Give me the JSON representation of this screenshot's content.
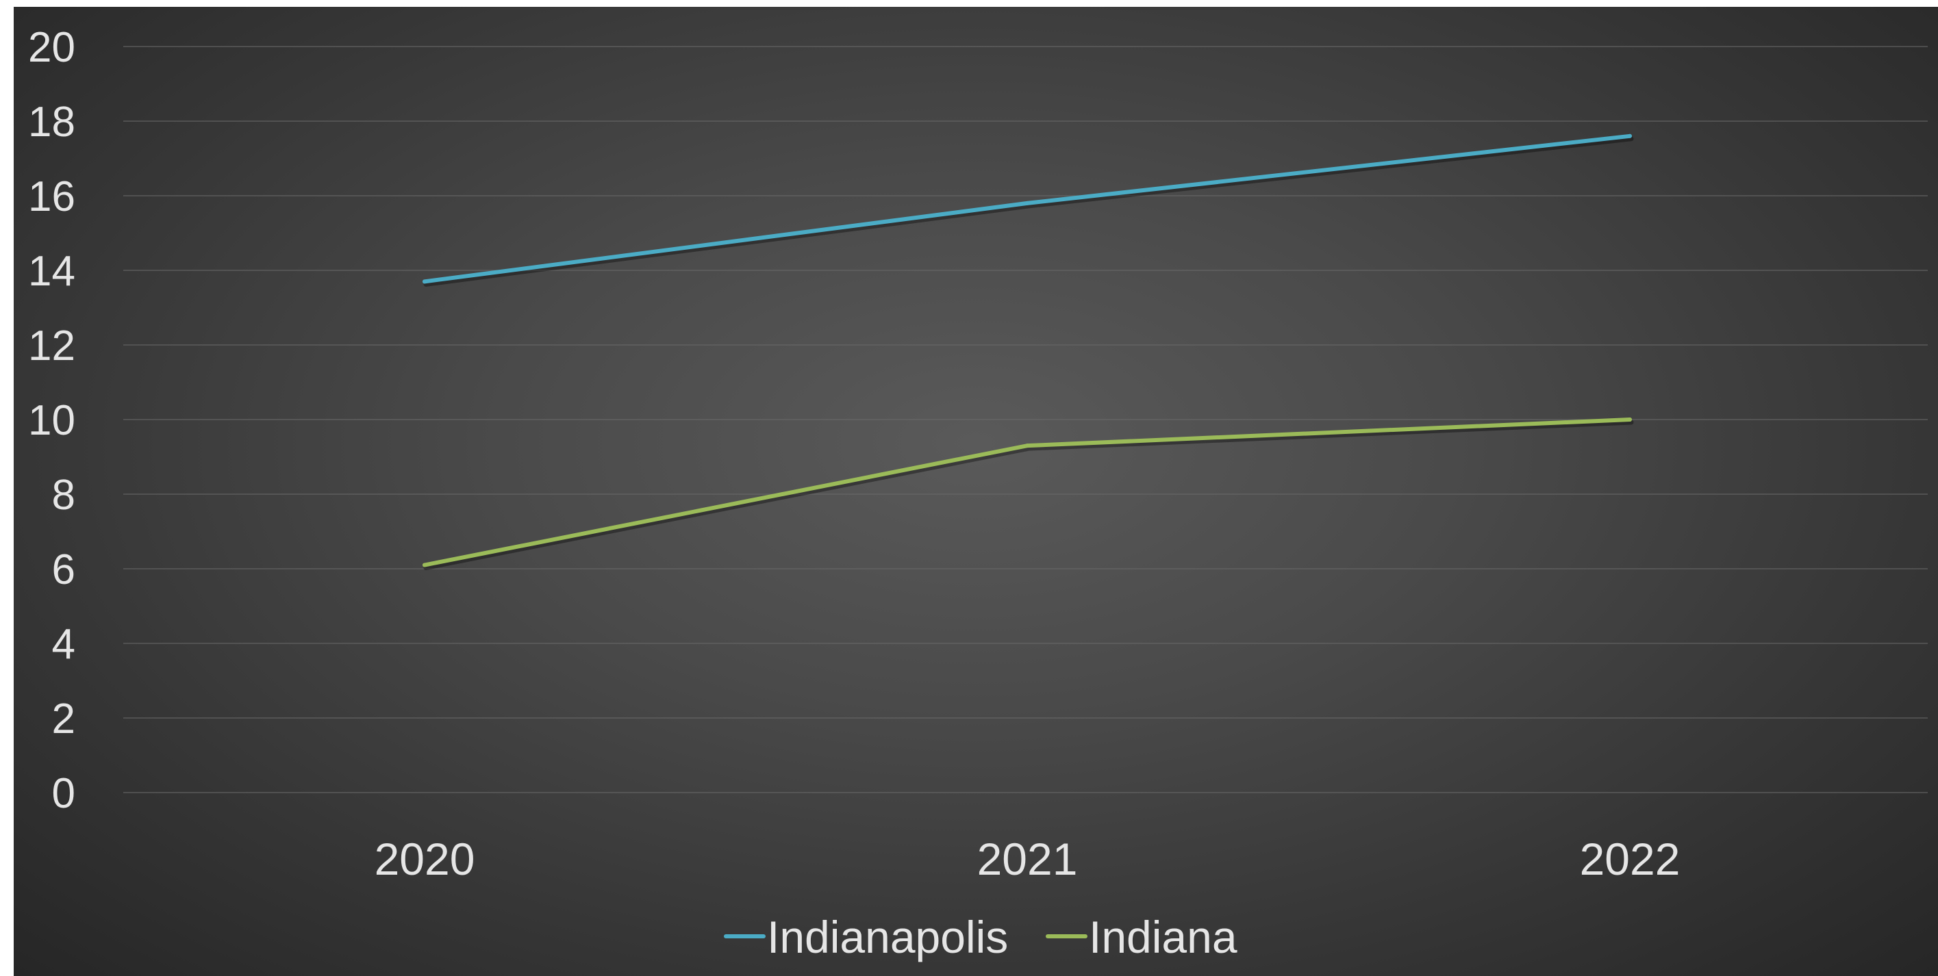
{
  "chart_data": {
    "type": "line",
    "categories": [
      "2020",
      "2021",
      "2022"
    ],
    "series": [
      {
        "name": "Indianapolis",
        "values": [
          13.7,
          15.8,
          17.6
        ],
        "color": "#4bacc6"
      },
      {
        "name": "Indiana",
        "values": [
          6.1,
          9.3,
          10.0
        ],
        "color": "#9bbb59"
      }
    ],
    "y_ticks": [
      "0",
      "2",
      "4",
      "6",
      "8",
      "10",
      "12",
      "14",
      "16",
      "18",
      "20"
    ],
    "ylim": [
      0,
      20
    ],
    "grid": true,
    "legend_position": "bottom",
    "title": "",
    "xlabel": "",
    "ylabel": ""
  }
}
